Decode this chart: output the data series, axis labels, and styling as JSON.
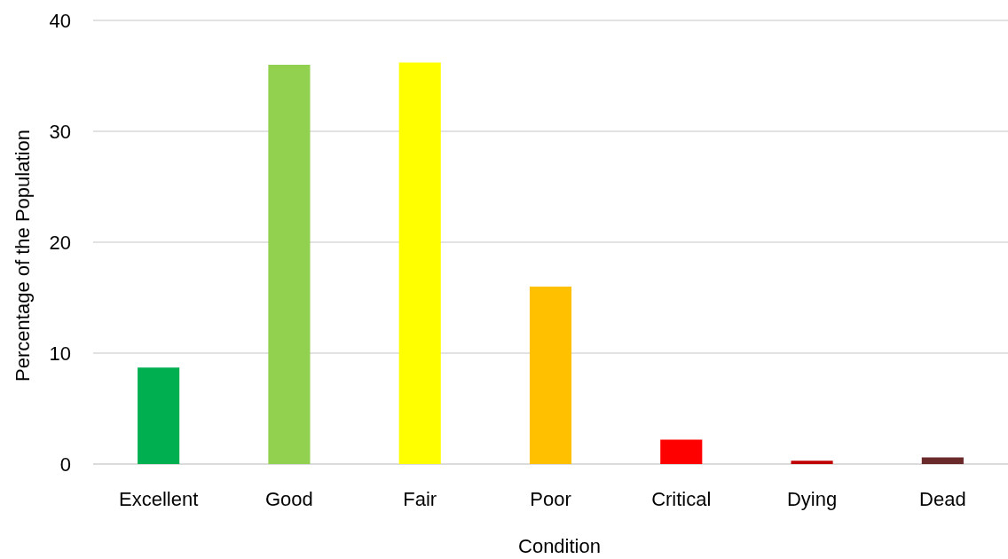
{
  "chart_data": {
    "type": "bar",
    "xlabel": "Condition",
    "ylabel": "Percentage of the Population",
    "categories": [
      "Excellent",
      "Good",
      "Fair",
      "Poor",
      "Critical",
      "Dying",
      "Dead"
    ],
    "values": [
      8.7,
      36.0,
      36.2,
      16.0,
      2.2,
      0.3,
      0.6
    ],
    "colors": [
      "#00b050",
      "#92d050",
      "#ffff00",
      "#ffc000",
      "#ff0000",
      "#c00000",
      "#6b2a2a"
    ],
    "ylim": [
      0,
      40
    ],
    "yticks": [
      0,
      10,
      20,
      30,
      40
    ],
    "grid": "y"
  }
}
